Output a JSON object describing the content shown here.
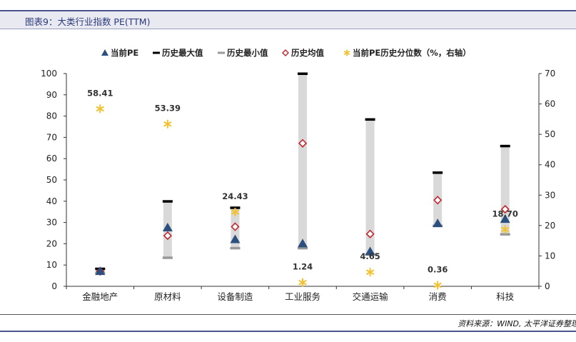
{
  "header": {
    "title": "图表9：大类行业指数 PE(TTM)",
    "source": "资料来源：WIND, 太平洋证券整理"
  },
  "chart_data": {
    "type": "scatter",
    "categories": [
      "金融地产",
      "原材料",
      "设备制造",
      "工业服务",
      "交通运输",
      "消费",
      "科技"
    ],
    "series": [
      {
        "name": "当前PE",
        "axis": "left",
        "marker": "triangle",
        "color": "#2b4f7e",
        "values": [
          7,
          27.5,
          22,
          20,
          16.3,
          29.5,
          31.5
        ]
      },
      {
        "name": "历史最大值",
        "axis": "left",
        "marker": "dash",
        "color": "#000000",
        "values": [
          8.3,
          40,
          37,
          100,
          78.5,
          53.5,
          66
        ]
      },
      {
        "name": "历史最小值",
        "axis": "left",
        "marker": "dash",
        "color": "#999999",
        "values": [
          6.3,
          13.5,
          18,
          18,
          15,
          28.5,
          24.5
        ]
      },
      {
        "name": "历史均值",
        "axis": "left",
        "marker": "diamond",
        "color": "#c0282e",
        "values": [
          7,
          23.8,
          28,
          67.2,
          24.6,
          40.5,
          36.2
        ]
      },
      {
        "name": "当前PE历史分位数（%，右轴）",
        "axis": "right",
        "marker": "star",
        "color": "#f2c12e",
        "values": [
          58.41,
          53.39,
          24.43,
          1.24,
          4.65,
          0.36,
          18.7
        ],
        "labels": [
          "58.41",
          "53.39",
          "24.43",
          "1.24",
          "4.65",
          "0.36",
          "18.70"
        ]
      }
    ],
    "ylim_left": [
      0,
      100
    ],
    "yticks_left": [
      "0",
      "10",
      "20",
      "30",
      "40",
      "50",
      "60",
      "70",
      "80",
      "90",
      "100"
    ],
    "ylim_right": [
      0,
      70
    ],
    "yticks_right": [
      "0",
      "10",
      "20",
      "30",
      "40",
      "50",
      "60",
      "70"
    ],
    "legend_position": "top",
    "grid": false,
    "range_bar_color": "#d9d9d9"
  }
}
